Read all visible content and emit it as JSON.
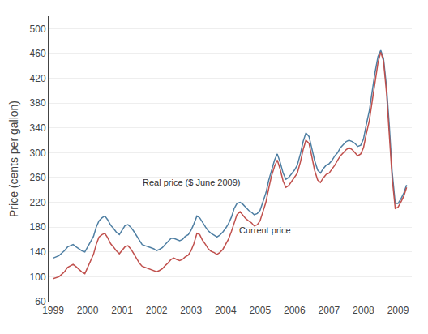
{
  "chart_data": {
    "type": "line",
    "y_label": "Price (cents per gallon)",
    "ylim": [
      60,
      520
    ],
    "yticks": [
      60,
      100,
      140,
      180,
      220,
      260,
      300,
      340,
      380,
      420,
      460,
      500
    ],
    "xlim": [
      1998.87,
      2009.4
    ],
    "xticks": [
      1999,
      2000,
      2001,
      2002,
      2003,
      2004,
      2005,
      2006,
      2007,
      2008,
      2009
    ],
    "grid": "y",
    "annotations": [
      {
        "text": "Real price ($ June 2009)",
        "x": 2001.55,
        "y": 242
      },
      {
        "text": "Current price",
        "x": 2004.35,
        "y": 185
      }
    ],
    "x": [
      1999.0,
      1999.08,
      1999.17,
      1999.25,
      1999.33,
      1999.42,
      1999.5,
      1999.58,
      1999.67,
      1999.75,
      1999.83,
      1999.92,
      2000.0,
      2000.08,
      2000.17,
      2000.25,
      2000.33,
      2000.42,
      2000.5,
      2000.58,
      2000.67,
      2000.75,
      2000.83,
      2000.92,
      2001.0,
      2001.08,
      2001.17,
      2001.25,
      2001.33,
      2001.42,
      2001.5,
      2001.58,
      2001.67,
      2001.75,
      2001.83,
      2001.92,
      2002.0,
      2002.08,
      2002.17,
      2002.25,
      2002.33,
      2002.42,
      2002.5,
      2002.58,
      2002.67,
      2002.75,
      2002.83,
      2002.92,
      2003.0,
      2003.08,
      2003.17,
      2003.25,
      2003.33,
      2003.42,
      2003.5,
      2003.58,
      2003.67,
      2003.75,
      2003.83,
      2003.92,
      2004.0,
      2004.08,
      2004.17,
      2004.25,
      2004.33,
      2004.42,
      2004.5,
      2004.58,
      2004.67,
      2004.75,
      2004.83,
      2004.92,
      2005.0,
      2005.08,
      2005.17,
      2005.25,
      2005.33,
      2005.42,
      2005.5,
      2005.58,
      2005.67,
      2005.75,
      2005.83,
      2005.92,
      2006.0,
      2006.08,
      2006.17,
      2006.25,
      2006.33,
      2006.42,
      2006.5,
      2006.58,
      2006.67,
      2006.75,
      2006.83,
      2006.92,
      2007.0,
      2007.08,
      2007.17,
      2007.25,
      2007.33,
      2007.42,
      2007.5,
      2007.58,
      2007.67,
      2007.75,
      2007.83,
      2007.92,
      2008.0,
      2008.08,
      2008.17,
      2008.25,
      2008.33,
      2008.42,
      2008.5,
      2008.58,
      2008.67,
      2008.75,
      2008.83,
      2008.92,
      2009.0,
      2009.08,
      2009.17,
      2009.25
    ],
    "series": [
      {
        "color": "#4f7fa3",
        "values": [
          130,
          132,
          134,
          138,
          142,
          148,
          150,
          152,
          148,
          145,
          142,
          140,
          148,
          155,
          165,
          180,
          190,
          195,
          198,
          192,
          183,
          178,
          172,
          168,
          175,
          182,
          184,
          180,
          174,
          166,
          158,
          152,
          150,
          148,
          147,
          145,
          142,
          144,
          147,
          152,
          157,
          162,
          162,
          160,
          158,
          160,
          165,
          168,
          175,
          185,
          198,
          195,
          187,
          180,
          174,
          170,
          167,
          164,
          167,
          172,
          178,
          185,
          196,
          210,
          218,
          220,
          217,
          212,
          207,
          204,
          200,
          202,
          207,
          220,
          235,
          255,
          272,
          288,
          298,
          285,
          267,
          257,
          260,
          267,
          272,
          280,
          298,
          318,
          332,
          326,
          308,
          288,
          272,
          267,
          274,
          280,
          282,
          287,
          295,
          300,
          308,
          314,
          318,
          320,
          318,
          315,
          310,
          312,
          322,
          345,
          368,
          398,
          428,
          455,
          465,
          452,
          405,
          342,
          270,
          218,
          218,
          225,
          235,
          248
        ]
      },
      {
        "color": "#c0504d",
        "values": [
          97,
          98,
          100,
          104,
          108,
          115,
          118,
          120,
          116,
          112,
          108,
          105,
          115,
          124,
          136,
          152,
          164,
          168,
          170,
          163,
          153,
          148,
          142,
          137,
          142,
          148,
          150,
          145,
          138,
          130,
          122,
          117,
          115,
          113,
          112,
          110,
          108,
          110,
          113,
          118,
          122,
          128,
          130,
          128,
          126,
          128,
          132,
          135,
          142,
          153,
          170,
          168,
          159,
          152,
          145,
          141,
          139,
          136,
          139,
          144,
          152,
          160,
          173,
          188,
          200,
          205,
          200,
          194,
          190,
          187,
          182,
          184,
          190,
          205,
          220,
          242,
          262,
          278,
          288,
          274,
          254,
          244,
          247,
          254,
          260,
          267,
          285,
          305,
          320,
          315,
          294,
          272,
          256,
          252,
          259,
          265,
          267,
          273,
          280,
          288,
          295,
          300,
          305,
          308,
          305,
          300,
          295,
          298,
          308,
          330,
          352,
          382,
          415,
          445,
          462,
          448,
          395,
          332,
          260,
          210,
          212,
          220,
          230,
          244
        ]
      }
    ]
  }
}
